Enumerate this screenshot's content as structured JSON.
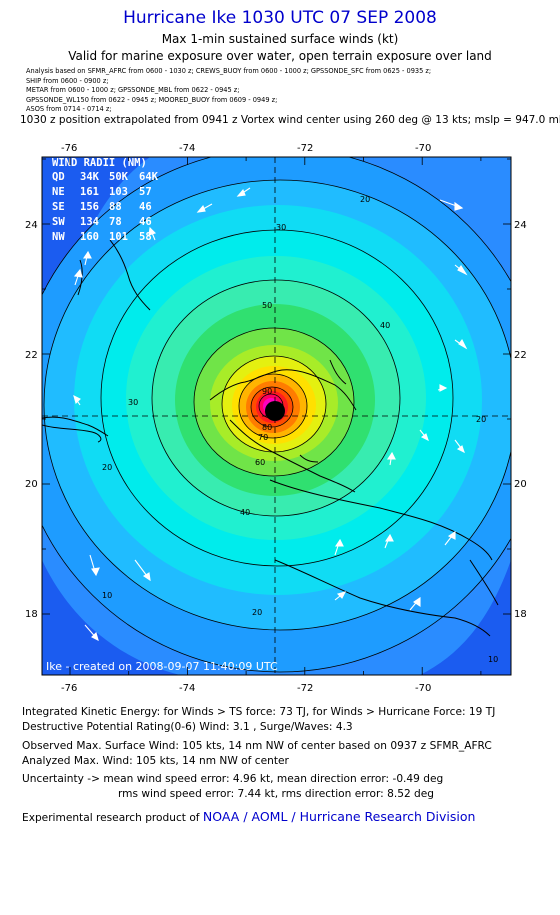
{
  "header": {
    "title": "Hurricane Ike 1030 UTC 07 SEP 2008",
    "subtitle": "Max 1-min sustained surface winds (kt)",
    "validity": "Valid for marine exposure over water, open terrain exposure over land",
    "analysis_lines": [
      "Analysis based on  SFMR_AFRC from 0600 - 1030 z;  CREWS_BUOY from 0600 - 1000 z;  GPSSONDE_SFC from 0625 - 0935 z;",
      "SHIP from 0600 - 0900 z;",
      "METAR from 0600 - 1000 z;  GPSSONDE_MBL from 0622 - 0945 z;",
      "GPSSONDE_WL150 from 0622 - 0945 z;  MOORED_BUOY from 0609 - 0949 z;",
      "ASOS from 0714 - 0714 z;"
    ],
    "position_note": "1030 z position extrapolated from 0941 z Vortex wind center using 260 deg @ 13 kts; mslp = 947.0 mb"
  },
  "map": {
    "lon_ticks": [
      "-76",
      "-74",
      "-72",
      "-70"
    ],
    "lat_ticks": [
      "24",
      "22",
      "20",
      "18"
    ],
    "lon_range": [
      -76.6,
      -68.6
    ],
    "lat_range": [
      17.2,
      25.9
    ],
    "center": {
      "lon": -72.55,
      "lat": 21.05
    },
    "wind_radii": {
      "title": "WIND RADII (NM)",
      "header": [
        "QD",
        "34K",
        "50K",
        "64K"
      ],
      "rows": [
        [
          "NE",
          "161",
          "103",
          "57"
        ],
        [
          "SE",
          "156",
          "88",
          "46"
        ],
        [
          "SW",
          "134",
          "78",
          "46"
        ],
        [
          "NW",
          "160",
          "101",
          "58"
        ]
      ]
    },
    "contour_labels": [
      "20",
      "30",
      "40",
      "50",
      "60",
      "70",
      "80",
      "90",
      "30",
      "40",
      "20",
      "20",
      "20",
      "10",
      "10"
    ],
    "credit": "Ike - created on 2008-09-07 11:40:09 UTC",
    "colors": {
      "deep_blue": "#1e64ff",
      "blue": "#2a8cff",
      "sky": "#1ec8ff",
      "cyan": "#00ecec",
      "aqua": "#2ef0c0",
      "green": "#30e070",
      "lime": "#a8ec28",
      "yellow": "#ffee00",
      "orange": "#ffa000",
      "red": "#ff4c00",
      "crimson": "#ff0040",
      "magenta": "#ff00c0"
    }
  },
  "footer": {
    "ike_line": "Integrated Kinetic Energy:  for Winds > TS force: 73 TJ,  for Winds > Hurricane Force: 19 TJ",
    "dpr_line": "Destructive Potential Rating(0-6)   Wind: 3.1 , Surge/Waves: 4.3",
    "obs_line": "Observed Max. Surface Wind: 105 kts, 14 nm NW of center based on 0937 z SFMR_AFRC",
    "anl_line": "Analyzed Max. Wind: 105 kts, 14 nm NW of center",
    "unc_line1": "Uncertainty -> mean wind speed error: 4.96 kt,   mean direction error:  -0.49 deg",
    "unc_line2": "rms wind speed error: 7.44 kt,   rms direction error: 8.52 deg",
    "product_prefix": "Experimental research product of",
    "product_link": "NOAA / AOML / Hurricane Research Division"
  }
}
